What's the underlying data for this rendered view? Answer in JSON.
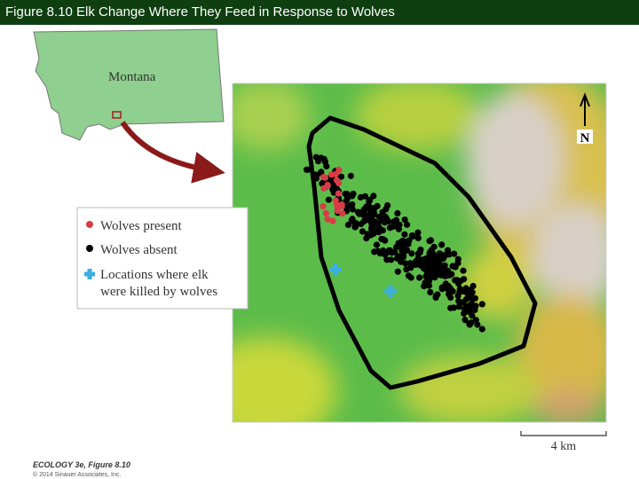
{
  "header": {
    "title": "Figure 8.10  Elk Change Where They Feed in Response to Wolves"
  },
  "inset": {
    "label": "Montana"
  },
  "legend": {
    "items": [
      {
        "label": "Wolves present"
      },
      {
        "label": "Wolves absent"
      },
      {
        "label": [
          "Locations where elk",
          "were killed by wolves"
        ]
      }
    ]
  },
  "map": {
    "north": "N",
    "scale": "4 km"
  },
  "credit": {
    "line1": "ECOLOGY 3e, Figure 8.10",
    "line2": "© 2014 Sinauer Associates, Inc."
  }
}
